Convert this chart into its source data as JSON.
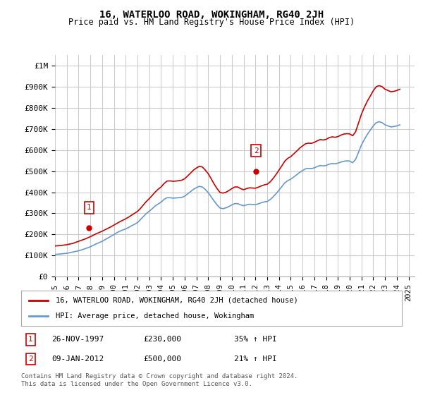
{
  "title": "16, WATERLOO ROAD, WOKINGHAM, RG40 2JH",
  "subtitle": "Price paid vs. HM Land Registry's House Price Index (HPI)",
  "ylabel_ticks": [
    "£0",
    "£100K",
    "£200K",
    "£300K",
    "£400K",
    "£500K",
    "£600K",
    "£700K",
    "£800K",
    "£900K",
    "£1M"
  ],
  "ytick_values": [
    0,
    100000,
    200000,
    300000,
    400000,
    500000,
    600000,
    700000,
    800000,
    900000,
    1000000
  ],
  "ylim": [
    0,
    1050000
  ],
  "xlim_start": 1995.0,
  "xlim_end": 2025.5,
  "line_color_red": "#cc0000",
  "line_color_blue": "#6699cc",
  "annotation_box_color": "#cc0000",
  "background_color": "#ffffff",
  "grid_color": "#cccccc",
  "legend_label_red": "16, WATERLOO ROAD, WOKINGHAM, RG40 2JH (detached house)",
  "legend_label_blue": "HPI: Average price, detached house, Wokingham",
  "marker1_x": 1997.9,
  "marker1_y": 230000,
  "marker1_label": "1",
  "marker2_x": 2012.05,
  "marker2_y": 500000,
  "marker2_label": "2",
  "table_row1": [
    "1",
    "26-NOV-1997",
    "£230,000",
    "35% ↑ HPI"
  ],
  "table_row2": [
    "2",
    "09-JAN-2012",
    "£500,000",
    "21% ↑ HPI"
  ],
  "footnote": "Contains HM Land Registry data © Crown copyright and database right 2024.\nThis data is licensed under the Open Government Licence v3.0.",
  "hpi_x": [
    1995.0,
    1995.25,
    1995.5,
    1995.75,
    1996.0,
    1996.25,
    1996.5,
    1996.75,
    1997.0,
    1997.25,
    1997.5,
    1997.75,
    1998.0,
    1998.25,
    1998.5,
    1998.75,
    1999.0,
    1999.25,
    1999.5,
    1999.75,
    2000.0,
    2000.25,
    2000.5,
    2000.75,
    2001.0,
    2001.25,
    2001.5,
    2001.75,
    2002.0,
    2002.25,
    2002.5,
    2002.75,
    2003.0,
    2003.25,
    2003.5,
    2003.75,
    2004.0,
    2004.25,
    2004.5,
    2004.75,
    2005.0,
    2005.25,
    2005.5,
    2005.75,
    2006.0,
    2006.25,
    2006.5,
    2006.75,
    2007.0,
    2007.25,
    2007.5,
    2007.75,
    2008.0,
    2008.25,
    2008.5,
    2008.75,
    2009.0,
    2009.25,
    2009.5,
    2009.75,
    2010.0,
    2010.25,
    2010.5,
    2010.75,
    2011.0,
    2011.25,
    2011.5,
    2011.75,
    2012.0,
    2012.25,
    2012.5,
    2012.75,
    2013.0,
    2013.25,
    2013.5,
    2013.75,
    2014.0,
    2014.25,
    2014.5,
    2014.75,
    2015.0,
    2015.25,
    2015.5,
    2015.75,
    2016.0,
    2016.25,
    2016.5,
    2016.75,
    2017.0,
    2017.25,
    2017.5,
    2017.75,
    2018.0,
    2018.25,
    2018.5,
    2018.75,
    2019.0,
    2019.25,
    2019.5,
    2019.75,
    2020.0,
    2020.25,
    2020.5,
    2020.75,
    2021.0,
    2021.25,
    2021.5,
    2021.75,
    2022.0,
    2022.25,
    2022.5,
    2022.75,
    2023.0,
    2023.25,
    2023.5,
    2023.75,
    2024.0,
    2024.25
  ],
  "hpi_y": [
    105000,
    106000,
    107000,
    109000,
    110000,
    113000,
    116000,
    119000,
    122000,
    126000,
    131000,
    136000,
    141000,
    148000,
    155000,
    161000,
    167000,
    175000,
    183000,
    191000,
    199000,
    208000,
    215000,
    221000,
    226000,
    233000,
    241000,
    248000,
    256000,
    270000,
    285000,
    299000,
    310000,
    322000,
    335000,
    344000,
    353000,
    366000,
    374000,
    374000,
    372000,
    373000,
    374000,
    375000,
    381000,
    392000,
    403000,
    414000,
    422000,
    428000,
    425000,
    413000,
    398000,
    378000,
    358000,
    340000,
    325000,
    322000,
    326000,
    332000,
    340000,
    346000,
    346000,
    340000,
    336000,
    340000,
    343000,
    342000,
    341000,
    345000,
    350000,
    354000,
    356000,
    365000,
    378000,
    393000,
    410000,
    427000,
    445000,
    455000,
    462000,
    472000,
    483000,
    494000,
    503000,
    511000,
    513000,
    512000,
    516000,
    522000,
    527000,
    525000,
    527000,
    533000,
    536000,
    535000,
    538000,
    543000,
    547000,
    549000,
    548000,
    540000,
    556000,
    590000,
    625000,
    651000,
    675000,
    695000,
    715000,
    730000,
    735000,
    730000,
    720000,
    715000,
    710000,
    712000,
    715000,
    720000
  ],
  "price_x": [
    1995.0,
    1995.25,
    1995.5,
    1995.75,
    1996.0,
    1996.25,
    1996.5,
    1996.75,
    1997.0,
    1997.25,
    1997.5,
    1997.75,
    1998.0,
    1998.25,
    1998.5,
    1998.75,
    1999.0,
    1999.25,
    1999.5,
    1999.75,
    2000.0,
    2000.25,
    2000.5,
    2000.75,
    2001.0,
    2001.25,
    2001.5,
    2001.75,
    2002.0,
    2002.25,
    2002.5,
    2002.75,
    2003.0,
    2003.25,
    2003.5,
    2003.75,
    2004.0,
    2004.25,
    2004.5,
    2004.75,
    2005.0,
    2005.25,
    2005.5,
    2005.75,
    2006.0,
    2006.25,
    2006.5,
    2006.75,
    2007.0,
    2007.25,
    2007.5,
    2007.75,
    2008.0,
    2008.25,
    2008.5,
    2008.75,
    2009.0,
    2009.25,
    2009.5,
    2009.75,
    2010.0,
    2010.25,
    2010.5,
    2010.75,
    2011.0,
    2011.25,
    2011.5,
    2011.75,
    2012.0,
    2012.25,
    2012.5,
    2012.75,
    2013.0,
    2013.25,
    2013.5,
    2013.75,
    2014.0,
    2014.25,
    2014.5,
    2014.75,
    2015.0,
    2015.25,
    2015.5,
    2015.75,
    2016.0,
    2016.25,
    2016.5,
    2016.75,
    2017.0,
    2017.25,
    2017.5,
    2017.75,
    2018.0,
    2018.25,
    2018.5,
    2018.75,
    2019.0,
    2019.25,
    2019.5,
    2019.75,
    2020.0,
    2020.25,
    2020.5,
    2020.75,
    2021.0,
    2021.25,
    2021.5,
    2021.75,
    2022.0,
    2022.25,
    2022.5,
    2022.75,
    2023.0,
    2023.25,
    2023.5,
    2023.75,
    2024.0,
    2024.25
  ],
  "price_y": [
    145000,
    146000,
    147000,
    149000,
    151000,
    154000,
    157000,
    162000,
    167000,
    172000,
    177000,
    183000,
    189000,
    196000,
    203000,
    209000,
    215000,
    222000,
    229000,
    236000,
    244000,
    252000,
    260000,
    267000,
    274000,
    282000,
    291000,
    300000,
    309000,
    323000,
    340000,
    356000,
    370000,
    385000,
    401000,
    414000,
    425000,
    441000,
    453000,
    454000,
    452000,
    453000,
    455000,
    457000,
    464000,
    477000,
    491000,
    505000,
    515000,
    523000,
    520000,
    505000,
    488000,
    464000,
    439000,
    417000,
    399000,
    396000,
    400000,
    408000,
    417000,
    425000,
    425000,
    417000,
    412000,
    417000,
    421000,
    420000,
    419000,
    424000,
    430000,
    435000,
    438000,
    449000,
    465000,
    484000,
    505000,
    526000,
    548000,
    561000,
    569000,
    582000,
    595000,
    609000,
    620000,
    630000,
    633000,
    632000,
    637000,
    644000,
    650000,
    648000,
    651000,
    659000,
    663000,
    661000,
    664000,
    671000,
    676000,
    678000,
    677000,
    668000,
    687000,
    729000,
    771000,
    804000,
    833000,
    857000,
    882000,
    901000,
    906000,
    901000,
    889000,
    883000,
    877000,
    879000,
    883000,
    889000
  ]
}
